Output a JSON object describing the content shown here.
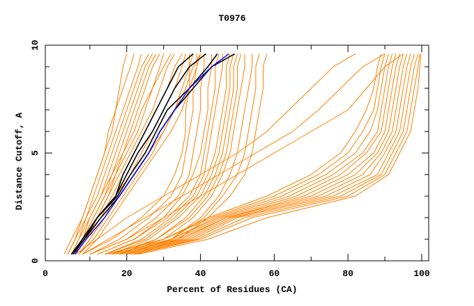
{
  "chart_data": {
    "type": "line",
    "title": "T0976",
    "xlabel": "Percent of Residues (CA)",
    "ylabel": "Distance Cutoff, A",
    "xlim": [
      0,
      102
    ],
    "ylim": [
      0,
      10
    ],
    "x_ticks": [
      0,
      20,
      40,
      60,
      80,
      100
    ],
    "y_ticks": [
      0,
      5,
      10
    ],
    "grid": false,
    "y_levels": [
      0.3,
      1,
      2,
      3,
      4,
      5,
      6,
      7,
      8,
      9,
      9.6
    ],
    "colors": {
      "other": "#ff8000",
      "highlight": "#000000",
      "best": "#0000ff"
    },
    "series_other": [
      [
        3,
        5,
        8,
        10,
        12,
        14,
        16,
        17,
        18,
        19,
        20
      ],
      [
        4,
        6,
        8,
        10,
        12,
        14,
        15,
        17,
        19,
        21,
        22
      ],
      [
        4,
        6,
        9,
        11,
        13,
        15,
        17,
        19,
        21,
        23,
        24
      ],
      [
        5,
        7,
        9,
        12,
        14,
        16,
        18,
        20,
        22,
        24,
        26
      ],
      [
        5,
        7,
        10,
        13,
        15,
        17,
        19,
        21,
        23,
        25,
        27
      ],
      [
        5,
        8,
        10,
        13,
        16,
        18,
        20,
        22,
        24,
        26,
        28
      ],
      [
        6,
        8,
        11,
        14,
        17,
        19,
        21,
        23,
        25,
        27,
        29
      ],
      [
        6,
        9,
        12,
        15,
        17,
        20,
        23,
        25,
        27,
        29,
        30
      ],
      [
        5,
        8,
        11,
        14,
        16,
        19,
        22,
        24,
        27,
        30,
        32
      ],
      [
        6,
        9,
        12,
        15,
        18,
        21,
        24,
        27,
        29,
        31,
        33
      ],
      [
        6,
        9,
        13,
        16,
        19,
        22,
        25,
        28,
        31,
        33,
        35
      ],
      [
        7,
        10,
        14,
        17,
        21,
        24,
        27,
        30,
        33,
        35,
        36
      ],
      [
        7,
        10,
        14,
        18,
        22,
        26,
        30,
        33,
        35,
        37,
        38
      ],
      [
        7,
        11,
        15,
        19,
        23,
        27,
        30,
        33,
        36,
        38,
        40
      ],
      [
        8,
        12,
        16,
        20,
        24,
        28,
        32,
        35,
        37,
        39,
        40
      ],
      [
        8,
        16,
        24,
        30,
        33,
        35,
        36,
        36,
        37,
        37,
        37
      ],
      [
        10,
        18,
        26,
        32,
        35,
        36,
        37,
        38,
        38,
        39,
        39
      ],
      [
        10,
        20,
        28,
        34,
        37,
        38,
        39,
        40,
        40,
        41,
        41
      ],
      [
        12,
        22,
        30,
        35,
        38,
        40,
        41,
        42,
        42,
        43,
        43
      ],
      [
        12,
        22,
        31,
        37,
        40,
        41,
        42,
        43,
        44,
        44,
        45
      ],
      [
        14,
        24,
        32,
        38,
        41,
        42,
        43,
        44,
        45,
        46,
        46
      ],
      [
        14,
        25,
        33,
        39,
        42,
        44,
        45,
        46,
        47,
        47,
        48
      ],
      [
        16,
        26,
        34,
        40,
        43,
        45,
        46,
        47,
        48,
        48,
        49
      ],
      [
        16,
        28,
        36,
        41,
        44,
        46,
        47,
        48,
        49,
        49,
        50
      ],
      [
        18,
        28,
        37,
        42,
        45,
        47,
        48,
        49,
        50,
        50,
        51
      ],
      [
        18,
        30,
        38,
        43,
        46,
        48,
        49,
        50,
        51,
        52,
        52
      ],
      [
        20,
        32,
        40,
        45,
        48,
        50,
        51,
        52,
        53,
        54,
        54
      ],
      [
        20,
        32,
        41,
        46,
        50,
        52,
        53,
        54,
        55,
        55,
        56
      ],
      [
        22,
        34,
        42,
        48,
        52,
        54,
        55,
        56,
        57,
        57,
        58
      ],
      [
        14,
        30,
        42,
        58,
        70,
        78,
        82,
        85,
        87,
        88,
        89
      ],
      [
        15,
        30,
        43,
        60,
        72,
        80,
        84,
        87,
        88,
        89,
        90
      ],
      [
        16,
        32,
        44,
        62,
        74,
        82,
        86,
        88,
        89,
        90,
        91
      ],
      [
        17,
        32,
        45,
        64,
        76,
        84,
        88,
        89,
        90,
        91,
        92
      ],
      [
        18,
        33,
        46,
        66,
        78,
        85,
        89,
        90,
        91,
        92,
        93
      ],
      [
        18,
        34,
        47,
        68,
        80,
        87,
        90,
        91,
        92,
        93,
        94
      ],
      [
        19,
        35,
        47,
        70,
        82,
        88,
        91,
        92,
        93,
        94,
        95
      ],
      [
        20,
        36,
        48,
        72,
        84,
        89,
        92,
        93,
        94,
        95,
        96
      ],
      [
        20,
        37,
        49,
        74,
        86,
        90,
        93,
        94,
        95,
        96,
        97
      ],
      [
        21,
        38,
        50,
        76,
        88,
        91,
        94,
        95,
        96,
        97,
        98
      ],
      [
        22,
        39,
        52,
        78,
        89,
        92,
        95,
        96,
        97,
        98,
        99
      ],
      [
        22,
        40,
        54,
        80,
        90,
        93,
        96,
        97,
        98,
        99,
        99.5
      ],
      [
        23,
        42,
        58,
        82,
        91,
        94,
        97,
        98,
        99,
        99.5,
        99.8
      ],
      [
        10,
        20,
        30,
        40,
        50,
        60,
        70,
        80,
        85,
        90,
        95
      ],
      [
        8,
        15,
        25,
        35,
        45,
        55,
        65,
        72,
        78,
        84,
        90
      ],
      [
        6,
        12,
        20,
        30,
        40,
        50,
        58,
        64,
        70,
        76,
        82
      ]
    ],
    "series_highlight": [
      [
        5.5,
        8.5,
        12,
        17,
        19,
        22,
        25,
        28,
        31,
        34,
        38
      ],
      [
        5,
        8,
        12,
        17,
        20,
        23,
        27,
        30,
        33,
        37,
        41.5
      ],
      [
        5,
        8,
        12,
        17.5,
        21,
        25,
        28,
        31,
        37,
        42,
        44.6
      ],
      [
        5,
        8.5,
        13,
        18,
        22,
        26,
        29,
        33,
        38,
        43,
        49.3
      ]
    ],
    "series_best": [
      [
        6,
        9,
        14,
        18,
        22,
        26,
        29,
        33,
        37,
        43,
        47.7
      ]
    ]
  }
}
